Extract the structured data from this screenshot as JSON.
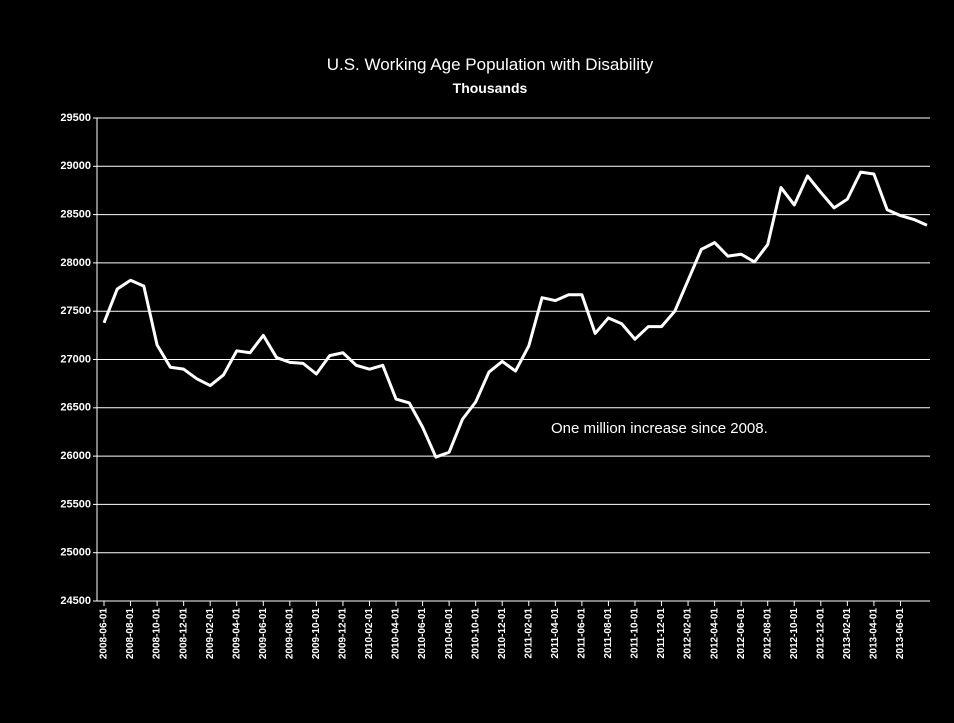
{
  "chart_data": {
    "type": "line",
    "title": "U.S. Working Age Population with Disability",
    "subtitle": "Thousands",
    "annotation": "One million  increase since 2008.",
    "categories": [
      "2008-06-01",
      null,
      "2008-08-01",
      null,
      "2008-10-01",
      null,
      "2008-12-01",
      null,
      "2009-02-01",
      null,
      "2009-04-01",
      null,
      "2009-06-01",
      null,
      "2009-08-01",
      null,
      "2009-10-01",
      null,
      "2009-12-01",
      null,
      "2010-02-01",
      null,
      "2010-04-01",
      null,
      "2010-06-01",
      null,
      "2010-08-01",
      null,
      "2010-10-01",
      null,
      "2010-12-01",
      null,
      "2011-02-01",
      null,
      "2011-04-01",
      null,
      "2011-06-01",
      null,
      "2011-08-01",
      null,
      "2011-10-01",
      null,
      "2011-12-01",
      null,
      "2012-02-01",
      null,
      "2012-04-01",
      null,
      "2012-06-01",
      null,
      "2012-08-01",
      null,
      "2012-10-01",
      null,
      "2012-12-01",
      null,
      "2013-02-01",
      null,
      "2013-04-01",
      null,
      "2013-06-01",
      null,
      null
    ],
    "series": [
      {
        "name": "Working Age Population with Disability",
        "color": "#ffffff",
        "values": [
          27380,
          27730,
          27820,
          27760,
          27150,
          26920,
          26900,
          26800,
          26730,
          26840,
          27090,
          27070,
          27250,
          27020,
          26970,
          26960,
          26850,
          27040,
          27070,
          26940,
          26900,
          26940,
          26590,
          26550,
          26300,
          25990,
          26040,
          26380,
          26560,
          26870,
          26980,
          26880,
          27140,
          27640,
          27610,
          27670,
          27670,
          27270,
          27430,
          27370,
          27210,
          27340,
          27340,
          27500,
          27820,
          28140,
          28210,
          28070,
          28090,
          28010,
          28190,
          28780,
          28600,
          28900,
          28730,
          28570,
          28660,
          28940,
          28920,
          28550,
          28490,
          28450,
          28390
        ]
      }
    ],
    "ylim": [
      24500,
      29500
    ],
    "yticks": [
      24500,
      25000,
      25500,
      26000,
      26500,
      27000,
      27500,
      28000,
      28500,
      29000,
      29500
    ],
    "grid": true
  }
}
